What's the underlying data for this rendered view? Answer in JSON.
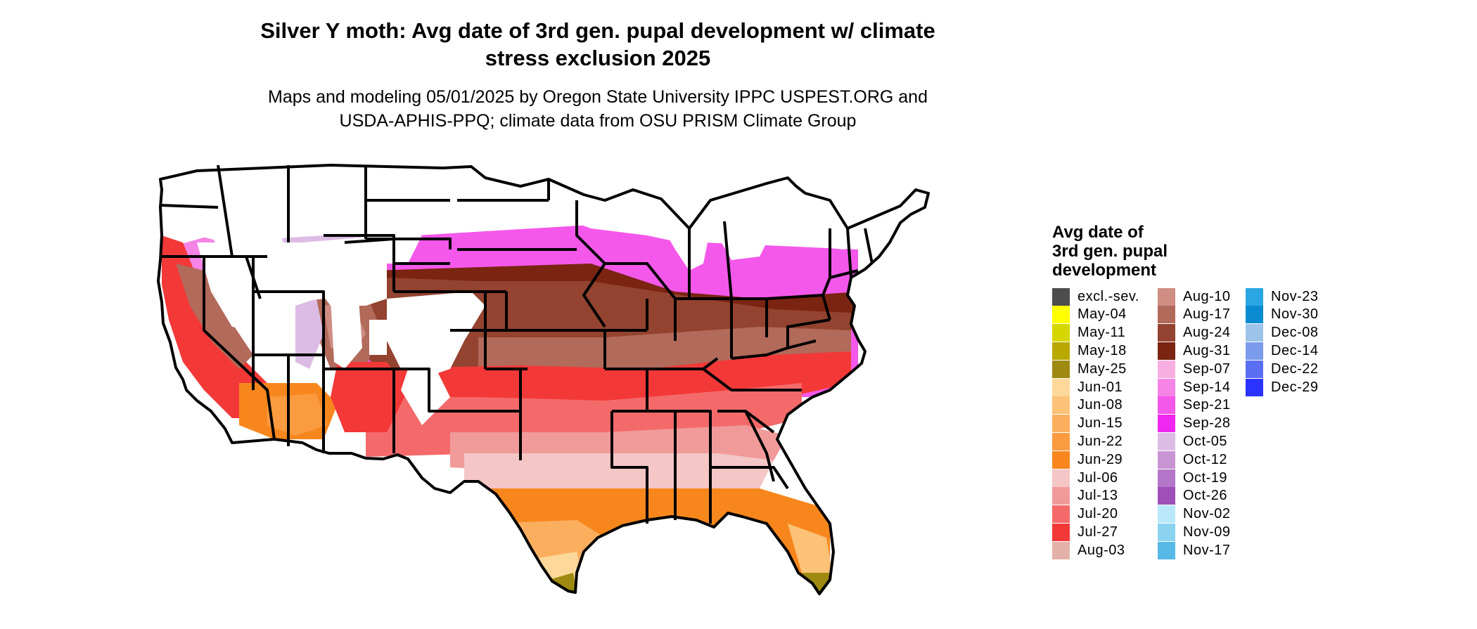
{
  "title": "Silver Y moth: Avg date of 3rd gen. pupal development w/ climate stress exclusion 2025",
  "title_lines": [
    "Silver Y moth: Avg date of 3rd gen. pupal development w/ climate",
    "stress exclusion 2025"
  ],
  "subtitle_lines": [
    "Maps and modeling 05/01/2025 by Oregon State University IPPC USPEST.ORG and",
    "USDA-APHIS-PPQ; climate data from OSU PRISM Climate Group"
  ],
  "map": {
    "region": "Contiguous United States",
    "boundaries": "state",
    "outline_color": "#000000",
    "unaffected_color": "#ffffff"
  },
  "legend": {
    "title_lines": [
      "Avg date of",
      "3rd gen. pupal",
      "development"
    ],
    "columns": [
      [
        {
          "label": "excl.-sev.",
          "color": "#4d4d4d"
        },
        {
          "label": "May-04",
          "color": "#ffff00"
        },
        {
          "label": "May-11",
          "color": "#d6d600"
        },
        {
          "label": "May-18",
          "color": "#b8a800"
        },
        {
          "label": "May-25",
          "color": "#9e8a10"
        },
        {
          "label": "Jun-01",
          "color": "#fdd89a"
        },
        {
          "label": "Jun-08",
          "color": "#fcc277"
        },
        {
          "label": "Jun-15",
          "color": "#fcae5f"
        },
        {
          "label": "Jun-22",
          "color": "#fb9b40"
        },
        {
          "label": "Jun-29",
          "color": "#f7871d"
        },
        {
          "label": "Jul-06",
          "color": "#f4c6c6"
        },
        {
          "label": "Jul-13",
          "color": "#f19a9a"
        },
        {
          "label": "Jul-20",
          "color": "#f46a6a"
        },
        {
          "label": "Jul-27",
          "color": "#f33838"
        },
        {
          "label": "Aug-03",
          "color": "#e4b1a8"
        }
      ],
      [
        {
          "label": "Aug-10",
          "color": "#cf8d83"
        },
        {
          "label": "Aug-17",
          "color": "#b26a5b"
        },
        {
          "label": "Aug-24",
          "color": "#93432f"
        },
        {
          "label": "Aug-31",
          "color": "#7a2411"
        },
        {
          "label": "Sep-07",
          "color": "#f7aee0"
        },
        {
          "label": "Sep-14",
          "color": "#f584e6"
        },
        {
          "label": "Sep-21",
          "color": "#f458ea"
        },
        {
          "label": "Sep-28",
          "color": "#f027f0"
        },
        {
          "label": "Oct-05",
          "color": "#dcbce4"
        },
        {
          "label": "Oct-12",
          "color": "#c994d4"
        },
        {
          "label": "Oct-19",
          "color": "#b476c8"
        },
        {
          "label": "Oct-26",
          "color": "#9e4fb8"
        },
        {
          "label": "Nov-02",
          "color": "#b8e8fa"
        },
        {
          "label": "Nov-09",
          "color": "#8bd3ee"
        },
        {
          "label": "Nov-17",
          "color": "#56b9e6"
        }
      ],
      [
        {
          "label": "Nov-23",
          "color": "#2aa7e2"
        },
        {
          "label": "Nov-30",
          "color": "#0a8bd2"
        },
        {
          "label": "Dec-08",
          "color": "#9ec3ea"
        },
        {
          "label": "Dec-14",
          "color": "#7b9cec"
        },
        {
          "label": "Dec-22",
          "color": "#5a6ff4"
        },
        {
          "label": "Dec-29",
          "color": "#2a33ff"
        }
      ]
    ]
  }
}
